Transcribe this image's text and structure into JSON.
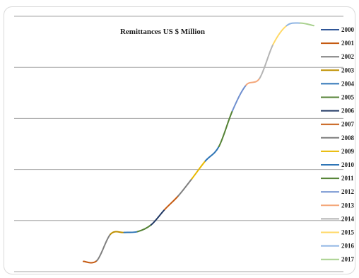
{
  "chart_data": {
    "type": "line",
    "title": "Remittances  US $ Million",
    "xlabel": "",
    "ylabel": "",
    "grid": true,
    "legend_position": "right",
    "x": [
      "2000",
      "2001",
      "2002",
      "2003",
      "2004",
      "2005",
      "2006",
      "2007",
      "2008",
      "2009",
      "2010",
      "2011",
      "2012",
      "2013",
      "2014",
      "2015",
      "2016",
      "2017"
    ],
    "values": [
      1200,
      1300,
      4400,
      4600,
      4700,
      5500,
      7300,
      8900,
      10900,
      13000,
      14700,
      18900,
      21900,
      22700,
      26700,
      28900,
      29200,
      28900
    ],
    "ylim": [
      0,
      30000
    ],
    "series": [
      {
        "name": "2000",
        "color": "#2f5597"
      },
      {
        "name": "2001",
        "color": "#c55a11"
      },
      {
        "name": "2002",
        "color": "#7f7f7f"
      },
      {
        "name": "2003",
        "color": "#bf9000"
      },
      {
        "name": "2004",
        "color": "#2e75b6"
      },
      {
        "name": "2005",
        "color": "#548235"
      },
      {
        "name": "2006",
        "color": "#203864"
      },
      {
        "name": "2007",
        "color": "#c55a11"
      },
      {
        "name": "2008",
        "color": "#7f7f7f"
      },
      {
        "name": "2009",
        "color": "#e8b800"
      },
      {
        "name": "2010",
        "color": "#2e75b6"
      },
      {
        "name": "2011",
        "color": "#548235"
      },
      {
        "name": "2012",
        "color": "#6f8fcf"
      },
      {
        "name": "2013",
        "color": "#f4a77a"
      },
      {
        "name": "2014",
        "color": "#b4b4b4"
      },
      {
        "name": "2015",
        "color": "#ffd966"
      },
      {
        "name": "2016",
        "color": "#8eb4e3"
      },
      {
        "name": "2017",
        "color": "#a9d18e"
      }
    ]
  }
}
